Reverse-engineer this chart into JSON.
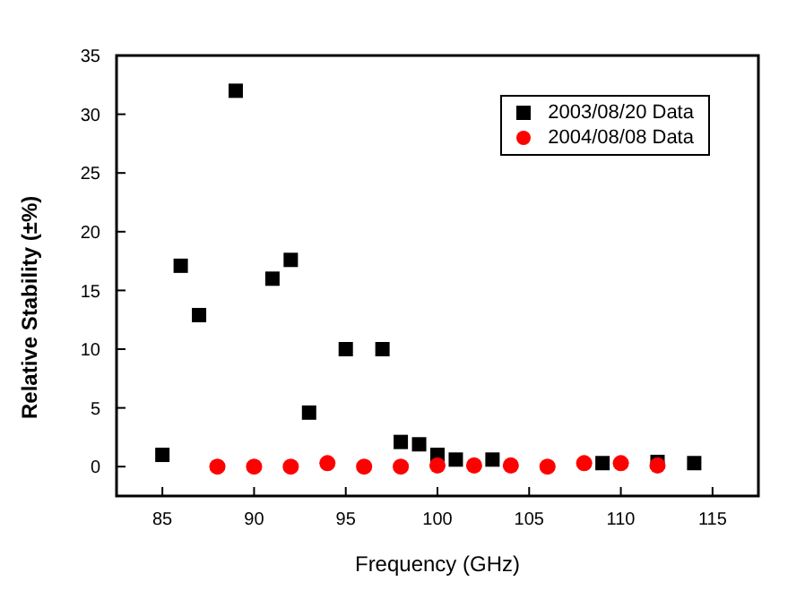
{
  "chart_data": {
    "type": "scatter",
    "xlabel": "Frequency (GHz)",
    "ylabel": "Relative Stability (±%)",
    "xlim": [
      82.5,
      117.5
    ],
    "xticks": [
      85,
      90,
      95,
      100,
      105,
      110,
      115
    ],
    "ylim": [
      -2.5,
      35
    ],
    "yticks": [
      0,
      5,
      10,
      15,
      20,
      25,
      30,
      35
    ],
    "grid": false,
    "legend": "top right",
    "series": [
      {
        "name": "2003/08/20 Data",
        "color": "#000000",
        "marker": "square",
        "x": [
          85,
          86,
          87,
          89,
          91,
          92,
          93,
          95,
          97,
          98,
          99,
          100,
          101,
          103,
          109,
          112,
          114
        ],
        "values": [
          1.0,
          17.1,
          12.9,
          32,
          16,
          17.6,
          4.6,
          10,
          10,
          2.1,
          1.9,
          1.0,
          0.6,
          0.6,
          0.3,
          0.4,
          0.3
        ]
      },
      {
        "name": "2004/08/08 Data",
        "color": "#ff0000",
        "marker": "circle",
        "x": [
          88,
          90,
          92,
          94,
          96,
          98,
          100,
          102,
          104,
          106,
          108,
          110,
          112
        ],
        "values": [
          0,
          0,
          0,
          0.3,
          0,
          0,
          0.1,
          0.1,
          0.1,
          0,
          0.3,
          0.3,
          0.1
        ]
      }
    ]
  }
}
